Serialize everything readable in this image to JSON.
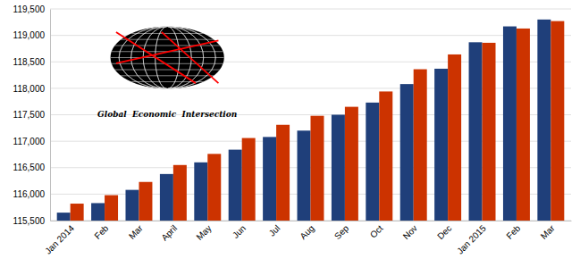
{
  "chart_data": {
    "type": "bar",
    "categories": [
      "Jan 2014",
      "Feb",
      "Mar",
      "April",
      "May",
      "Jun",
      "Jul",
      "Aug",
      "Sep",
      "Oct",
      "Nov",
      "Dec",
      "Jan 2015",
      "Feb",
      "Mar"
    ],
    "series": [
      {
        "color": "#1f3f7a",
        "values": [
          115650,
          115830,
          116080,
          116380,
          116600,
          116840,
          117080,
          117200,
          117500,
          117730,
          118080,
          118370,
          118870,
          119170,
          119300
        ]
      },
      {
        "color": "#cc3300",
        "values": [
          115820,
          115980,
          116230,
          116550,
          116760,
          117060,
          117310,
          117480,
          117650,
          117940,
          118360,
          118640,
          118860,
          119130,
          119270
        ]
      }
    ],
    "ylim": [
      115500,
      119500
    ],
    "yticks": [
      {
        "value": 115500,
        "label": "115,500"
      },
      {
        "value": 116000,
        "label": "116,000"
      },
      {
        "value": 116500,
        "label": "116,500"
      },
      {
        "value": 117000,
        "label": "117,000"
      },
      {
        "value": 117500,
        "label": "117,500"
      },
      {
        "value": 118000,
        "label": "118,000"
      },
      {
        "value": 118500,
        "label": "118,500"
      },
      {
        "value": 119000,
        "label": "119,000"
      },
      {
        "value": 119500,
        "label": "119,500"
      }
    ],
    "grid": true,
    "annotations": [
      "Global  Economic  Intersection"
    ]
  }
}
